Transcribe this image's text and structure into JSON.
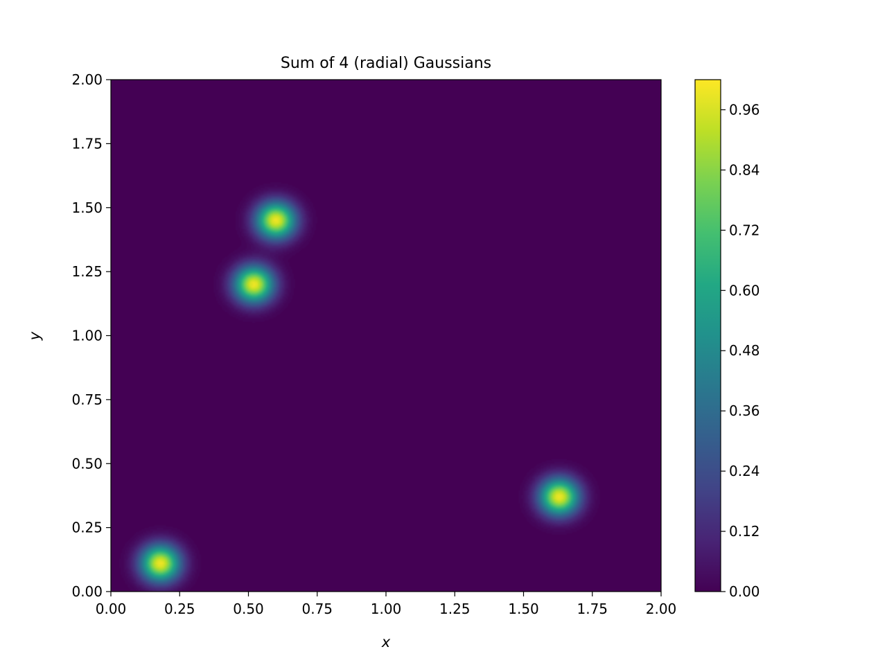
{
  "chart_data": {
    "type": "heatmap",
    "title": "Sum of 4 (radial) Gaussians",
    "xlabel": "x",
    "ylabel": "y",
    "xlim": [
      0,
      2
    ],
    "ylim": [
      0,
      2
    ],
    "x_ticks": [
      "0.00",
      "0.25",
      "0.50",
      "0.75",
      "1.00",
      "1.25",
      "1.50",
      "1.75",
      "2.00"
    ],
    "y_ticks": [
      "0.00",
      "0.25",
      "0.50",
      "0.75",
      "1.00",
      "1.25",
      "1.50",
      "1.75",
      "2.00"
    ],
    "colormap": "viridis",
    "colorbar": {
      "range": [
        0,
        1.02
      ],
      "ticks": [
        "0.00",
        "0.12",
        "0.24",
        "0.36",
        "0.48",
        "0.60",
        "0.72",
        "0.84",
        "0.96"
      ]
    },
    "gaussians": [
      {
        "x": 0.18,
        "y": 0.11,
        "peak": 1.0,
        "sigma": 0.05
      },
      {
        "x": 0.52,
        "y": 1.2,
        "peak": 1.0,
        "sigma": 0.05
      },
      {
        "x": 0.6,
        "y": 1.45,
        "peak": 1.0,
        "sigma": 0.05
      },
      {
        "x": 1.63,
        "y": 0.37,
        "peak": 1.0,
        "sigma": 0.05
      }
    ],
    "grid": false
  }
}
